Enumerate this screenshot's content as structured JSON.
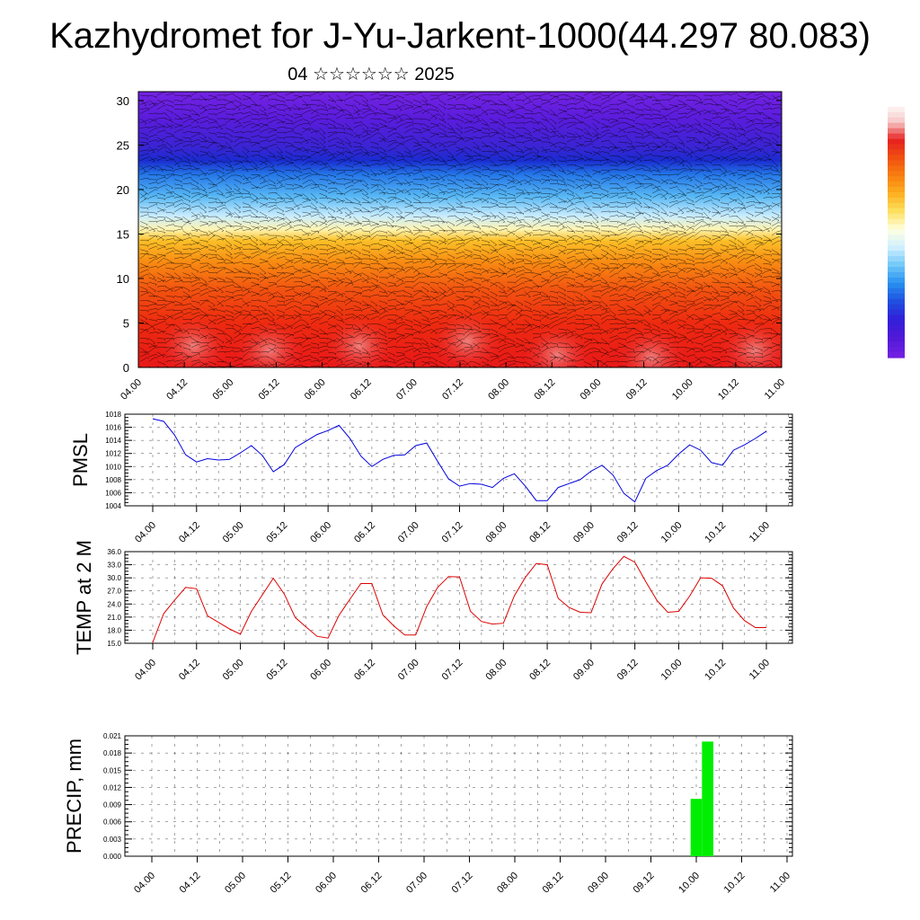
{
  "title": "Kazhydromet for J-Yu-Jarkent-1000(44.297 80.083)",
  "subtitle": "04 ☆☆☆☆☆☆ 2025",
  "chart_data": [
    {
      "id": "upper-air",
      "type": "heatmap",
      "xticks": [
        "04.00",
        "04.12",
        "05.00",
        "05.12",
        "06.00",
        "06.12",
        "07.00",
        "07.12",
        "08.00",
        "08.12",
        "09.00",
        "09.12",
        "10.00",
        "10.12",
        "11.00"
      ],
      "yticks": [
        0,
        5,
        10,
        15,
        20,
        25,
        30
      ],
      "ylim": [
        0,
        31
      ],
      "overlay": "wind barbs",
      "colorbar_colors": [
        "#ffffff",
        "#f7c7c7",
        "#e62020",
        "#f05010",
        "#f88010",
        "#fcb020",
        "#fde060",
        "#ffffe0",
        "#d0f0ff",
        "#70c8f8",
        "#2890f0",
        "#2050e0",
        "#3020d8",
        "#5018d8",
        "#7020e0"
      ]
    },
    {
      "id": "pmsl",
      "type": "line",
      "ylabel": "PMSL",
      "ylim": [
        1004,
        1018
      ],
      "yticks": [
        1004,
        1006,
        1008,
        1010,
        1012,
        1014,
        1016,
        1018
      ],
      "xticks": [
        "04.00",
        "04.12",
        "05.00",
        "05.12",
        "06.00",
        "06.12",
        "07.00",
        "07.12",
        "08.00",
        "08.12",
        "09.00",
        "09.12",
        "10.00",
        "10.12",
        "11.00"
      ],
      "color": "#0000dd",
      "values": [
        1017.3,
        1016.9,
        1014.8,
        1011.8,
        1010.7,
        1011.2,
        1011.0,
        1011.1,
        1012.1,
        1013.2,
        1011.7,
        1009.2,
        1010.3,
        1012.9,
        1013.9,
        1014.9,
        1015.5,
        1016.3,
        1014.3,
        1011.6,
        1010.0,
        1011.1,
        1011.7,
        1011.8,
        1013.2,
        1013.6,
        1010.8,
        1008.1,
        1007.0,
        1007.4,
        1007.3,
        1006.8,
        1008.2,
        1008.9,
        1007.0,
        1004.8,
        1004.8,
        1006.8,
        1007.4,
        1008.0,
        1009.3,
        1010.2,
        1008.7,
        1005.9,
        1004.6,
        1008.2,
        1009.4,
        1010.2,
        1011.9,
        1013.3,
        1012.5,
        1010.6,
        1010.2,
        1012.5,
        1013.3,
        1014.3,
        1015.4
      ]
    },
    {
      "id": "temp",
      "type": "line",
      "ylabel": "TEMP at 2 M",
      "ylim": [
        15,
        36
      ],
      "yticks": [
        15.0,
        18.0,
        21.0,
        24.0,
        27.0,
        30.0,
        33.0,
        36.0
      ],
      "xticks": [
        "04.00",
        "04.12",
        "05.00",
        "05.12",
        "06.00",
        "06.12",
        "07.00",
        "07.12",
        "08.00",
        "08.12",
        "09.00",
        "09.12",
        "10.00",
        "10.12",
        "11.00"
      ],
      "color": "#dd0000",
      "values": [
        15.2,
        21.8,
        24.9,
        27.8,
        27.5,
        21.3,
        19.8,
        18.3,
        17.1,
        22.3,
        26.1,
        29.9,
        26.3,
        20.9,
        18.7,
        16.6,
        16.2,
        21.4,
        25.1,
        28.7,
        28.7,
        21.5,
        19.0,
        16.9,
        16.9,
        23.4,
        27.8,
        30.3,
        30.2,
        22.3,
        20.0,
        19.4,
        19.6,
        25.9,
        30.1,
        33.3,
        33.0,
        25.3,
        23.2,
        22.1,
        22.0,
        28.6,
        32.1,
        34.9,
        33.6,
        29.1,
        24.9,
        22.1,
        22.3,
        25.8,
        30.0,
        29.9,
        28.2,
        23.1,
        20.2,
        18.6,
        18.6
      ]
    },
    {
      "id": "precip",
      "type": "bar",
      "ylabel": "PRECIP, mm",
      "ylim": [
        0,
        0.021
      ],
      "yticks": [
        "0.000",
        "0.003",
        "0.006",
        "0.009",
        "0.012",
        "0.015",
        "0.018",
        "0.021"
      ],
      "xticks": [
        "04.00",
        "04.12",
        "05.00",
        "05.12",
        "06.00",
        "06.12",
        "07.00",
        "07.12",
        "08.00",
        "08.12",
        "09.00",
        "09.12",
        "10.00",
        "10.12",
        "11.00"
      ],
      "color": "#00ee00",
      "bars": [
        {
          "step": 48,
          "value": 0.01
        },
        {
          "step": 49,
          "value": 0.02
        }
      ]
    }
  ]
}
